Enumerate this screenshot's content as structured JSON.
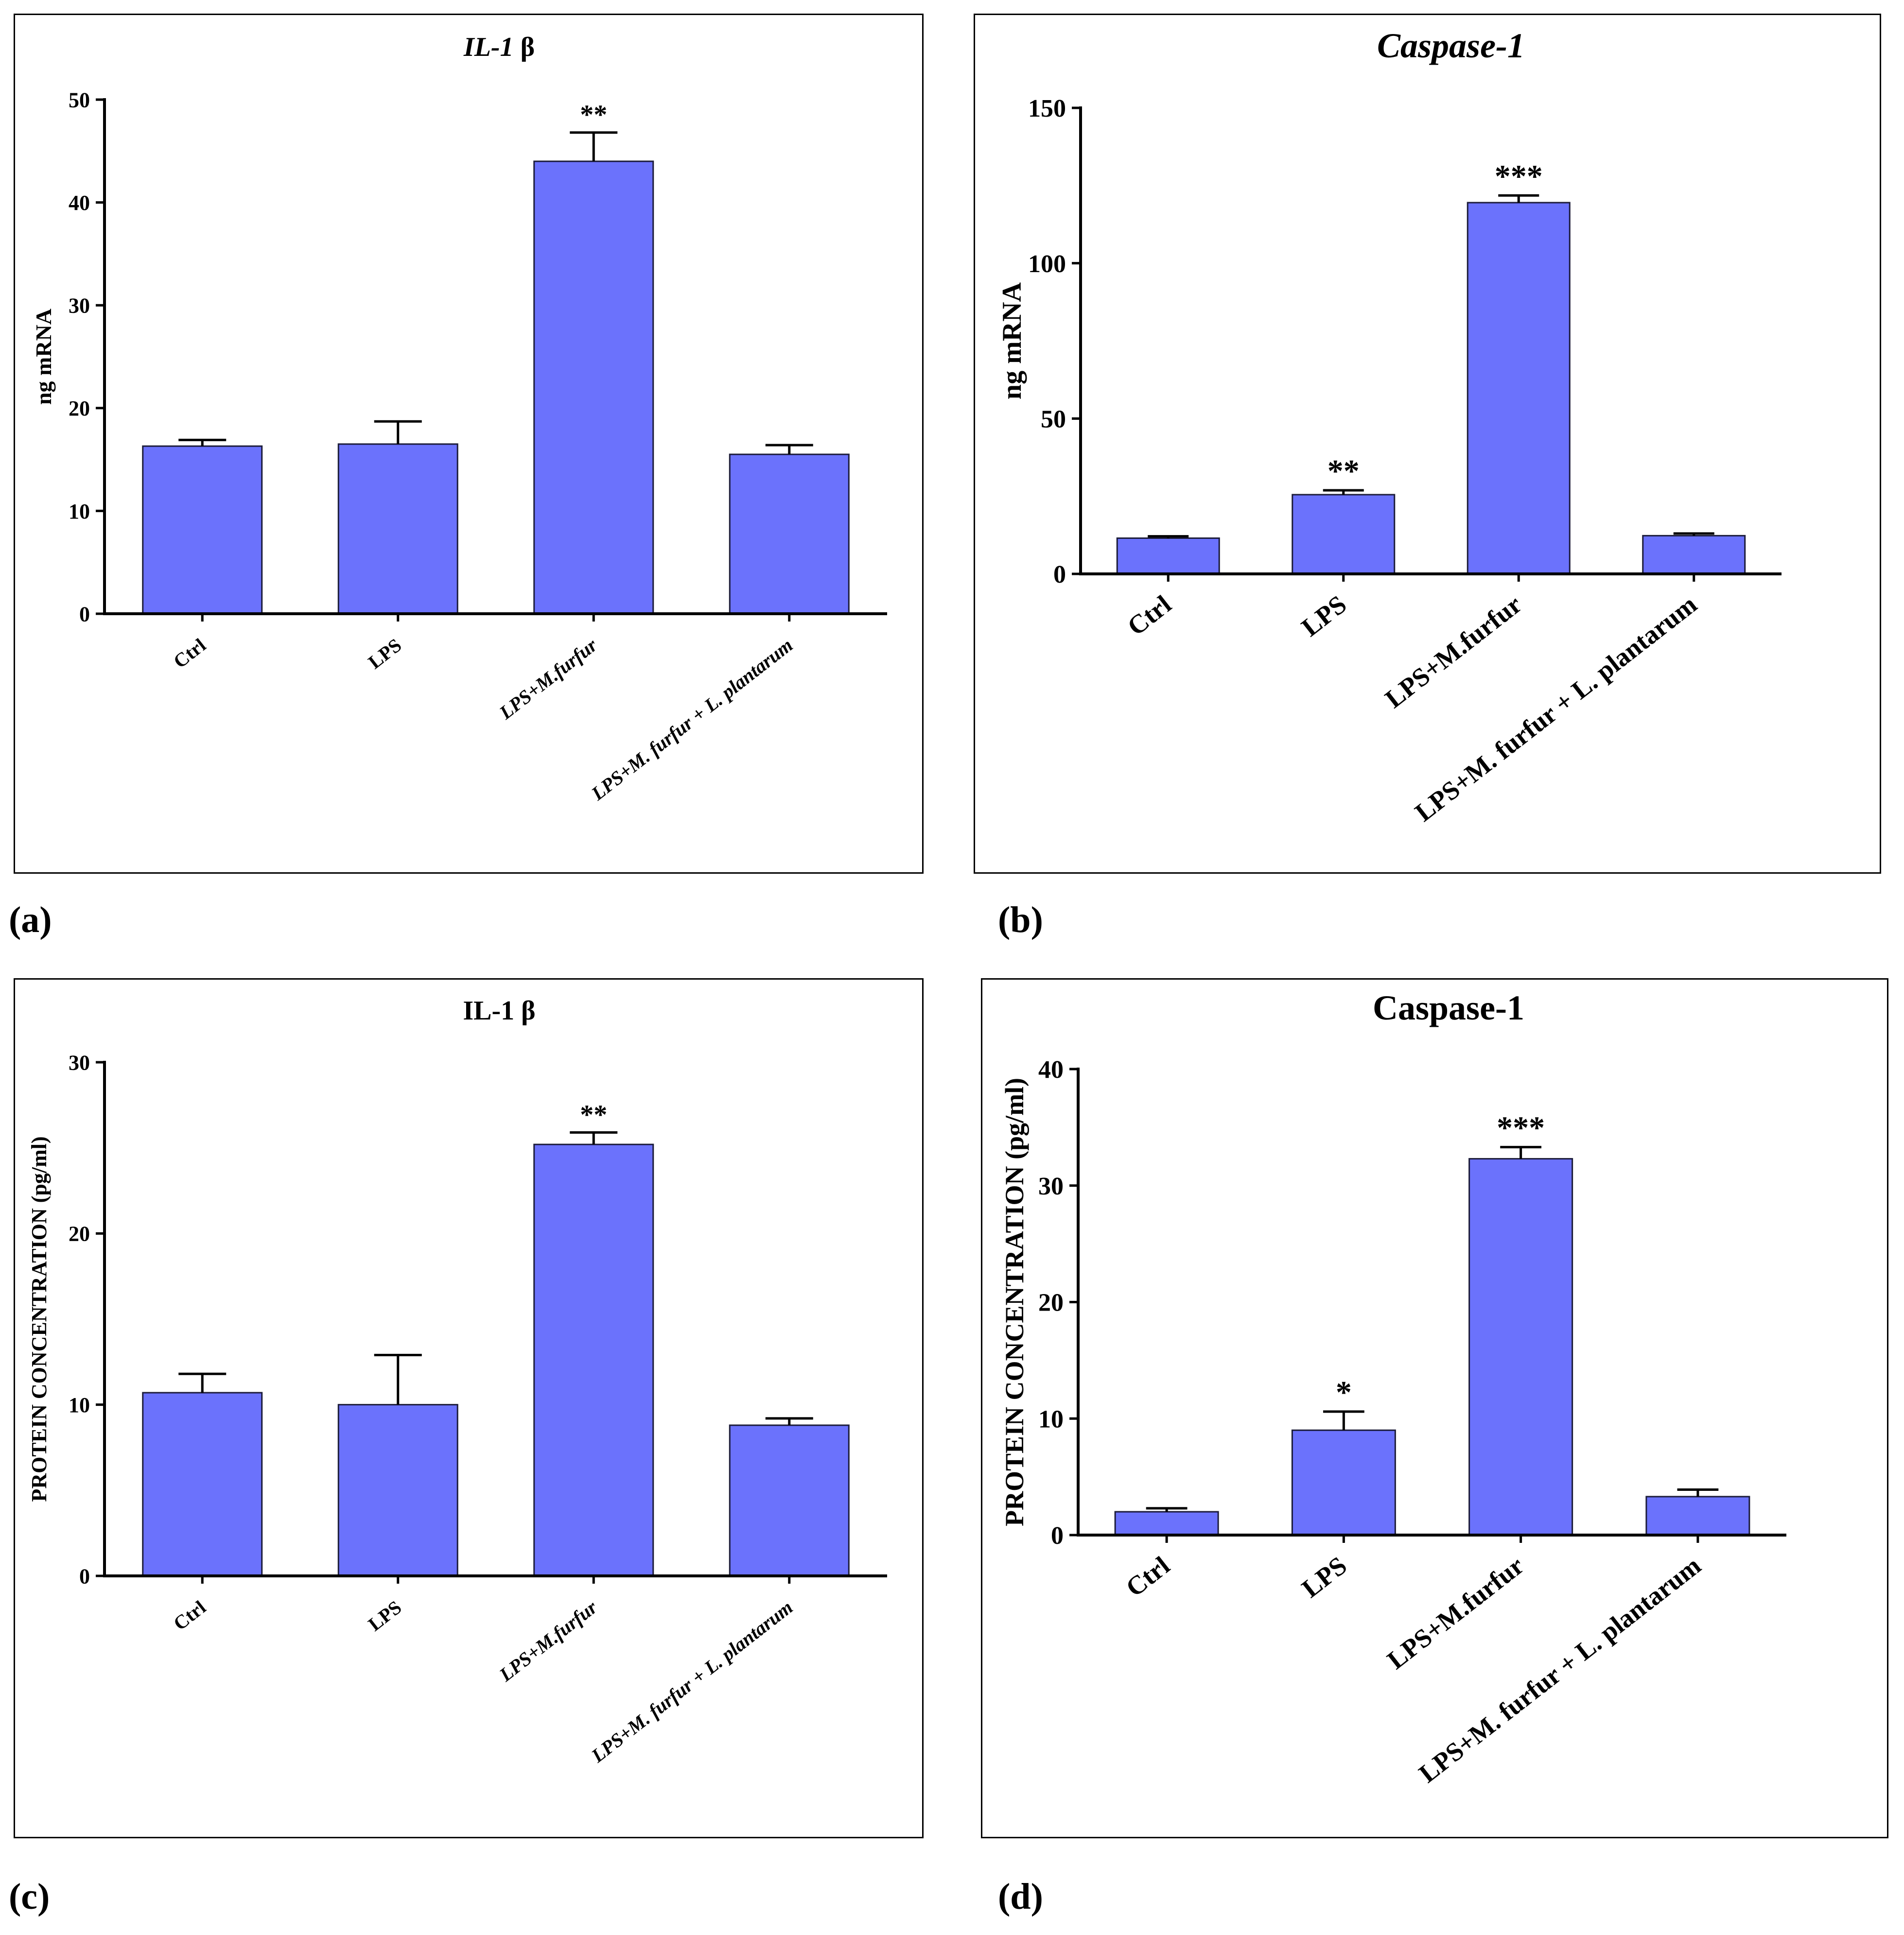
{
  "figure_labels": {
    "a": "(a)",
    "b": "(b)",
    "c": "(c)",
    "d": "(d)"
  },
  "colors": {
    "bar_fill": "#6b72fc",
    "bar_stroke": "#1c1c3a",
    "axis": "#000000",
    "background": "#ffffff"
  },
  "chart_data": [
    {
      "id": "a",
      "type": "bar",
      "title": "IL-1",
      "title_suffix": "β",
      "title_italic": true,
      "xlabel": "",
      "ylabel": "ng mRNA",
      "ylim": [
        0,
        50
      ],
      "yticks": [
        0,
        10,
        20,
        30,
        40,
        50
      ],
      "categories": [
        "Ctrl",
        "LPS",
        "LPS+M.furfur",
        "LPS+M. furfur + L. plantarum"
      ],
      "category_italic": [
        false,
        false,
        true,
        true
      ],
      "values": [
        16.3,
        16.5,
        44.0,
        15.5
      ],
      "errors": [
        0.6,
        2.2,
        2.8,
        0.9
      ],
      "significance": [
        "",
        "",
        "**",
        ""
      ]
    },
    {
      "id": "b",
      "type": "bar",
      "title": "Caspase-1",
      "title_suffix": "",
      "title_italic": true,
      "xlabel": "",
      "ylabel": "ng mRNA",
      "ylim": [
        0,
        150
      ],
      "yticks": [
        0,
        50,
        100,
        150
      ],
      "categories": [
        "Ctrl",
        "LPS",
        "LPS+M.furfur",
        "LPS+M. furfur + L. plantarum"
      ],
      "category_italic": [
        false,
        false,
        false,
        false
      ],
      "values": [
        11.5,
        25.5,
        119.5,
        12.3
      ],
      "errors": [
        0.6,
        1.4,
        2.3,
        0.7
      ],
      "significance": [
        "",
        "**",
        "***",
        ""
      ]
    },
    {
      "id": "c",
      "type": "bar",
      "title": "IL-1",
      "title_suffix": "β",
      "title_italic": false,
      "xlabel": "",
      "ylabel": "PROTEIN CONCENTRATION (pg/ml)",
      "ylim": [
        0,
        30
      ],
      "yticks": [
        0,
        10,
        20,
        30
      ],
      "categories": [
        "Ctrl",
        "LPS",
        "LPS+M.furfur",
        "LPS+M. furfur + L. plantarum"
      ],
      "category_italic": [
        false,
        false,
        true,
        true
      ],
      "values": [
        10.7,
        10.0,
        25.2,
        8.8
      ],
      "errors": [
        1.1,
        2.9,
        0.7,
        0.4
      ],
      "significance": [
        "",
        "",
        "**",
        ""
      ]
    },
    {
      "id": "d",
      "type": "bar",
      "title": "Caspase-1",
      "title_suffix": "",
      "title_italic": false,
      "xlabel": "",
      "ylabel": "PROTEIN CONCENTRATION (pg/ml)",
      "ylim": [
        0,
        40
      ],
      "yticks": [
        0,
        10,
        20,
        30,
        40
      ],
      "categories": [
        "Ctrl",
        "LPS",
        "LPS+M.furfur",
        "LPS+M. furfur + L. plantarum"
      ],
      "category_italic": [
        false,
        false,
        false,
        false
      ],
      "values": [
        2.0,
        9.0,
        32.3,
        3.3
      ],
      "errors": [
        0.3,
        1.6,
        1.0,
        0.6
      ],
      "significance": [
        "",
        "*",
        "***",
        ""
      ]
    }
  ]
}
